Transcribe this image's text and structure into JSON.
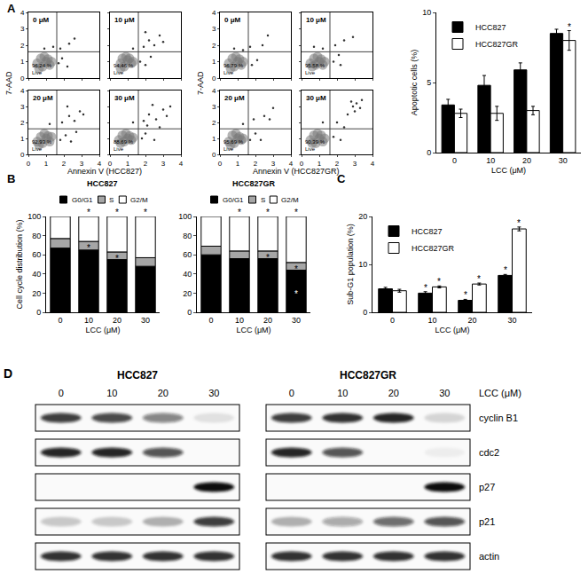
{
  "panel_letters": [
    "A",
    "B",
    "C",
    "D"
  ],
  "chart_data": [
    {
      "type": "scatter",
      "x_label": "Annexin V (HCC827)",
      "y_label": "7-AAD",
      "xlim": [
        0,
        4
      ],
      "ylim": [
        0,
        4
      ],
      "xticks": [
        0,
        1,
        2,
        3,
        4
      ],
      "yticks": [
        0,
        1,
        2,
        3,
        4
      ],
      "quadrant": [
        1.6,
        1.6
      ],
      "plots": [
        {
          "title": "0 μM",
          "live_label": "96.24 %",
          "live_text": "Live",
          "cloud": [
            [
              0.5,
              0.9
            ],
            [
              0.8,
              0.7
            ],
            [
              1.0,
              1.0
            ],
            [
              0.7,
              1.2
            ],
            [
              1.2,
              0.8
            ],
            [
              0.9,
              1.3
            ],
            [
              0.6,
              0.6
            ],
            [
              1.1,
              1.15
            ],
            [
              1.3,
              1.0
            ]
          ],
          "points": [
            [
              1.7,
              0.9
            ],
            [
              1.9,
              1.2
            ],
            [
              2.2,
              0.7
            ],
            [
              1.8,
              1.8
            ],
            [
              2.3,
              2.1
            ],
            [
              1.4,
              1.9
            ],
            [
              2.6,
              2.4
            ],
            [
              0.9,
              1.8
            ]
          ]
        },
        {
          "title": "10 μM",
          "live_label": "94.46 %",
          "live_text": "Live",
          "cloud": [
            [
              0.6,
              0.9
            ],
            [
              0.8,
              0.7
            ],
            [
              1.0,
              1.1
            ],
            [
              0.7,
              1.2
            ],
            [
              1.2,
              0.9
            ],
            [
              0.9,
              1.3
            ],
            [
              0.6,
              0.6
            ],
            [
              1.1,
              1.2
            ],
            [
              1.3,
              1.0
            ]
          ],
          "points": [
            [
              1.7,
              1.0
            ],
            [
              2.0,
              0.8
            ],
            [
              2.3,
              1.3
            ],
            [
              1.9,
              1.9
            ],
            [
              2.2,
              2.3
            ],
            [
              2.5,
              2.0
            ],
            [
              2.8,
              2.6
            ],
            [
              1.3,
              1.8
            ],
            [
              2.0,
              2.8
            ],
            [
              3.0,
              2.2
            ]
          ]
        },
        {
          "title": "20 μM",
          "live_label": "92.93 %",
          "live_text": "Live",
          "cloud": [
            [
              0.5,
              0.8
            ],
            [
              0.8,
              0.7
            ],
            [
              1.0,
              1.0
            ],
            [
              0.7,
              1.1
            ],
            [
              1.2,
              0.8
            ],
            [
              0.9,
              1.3
            ],
            [
              0.6,
              0.6
            ],
            [
              1.1,
              1.15
            ],
            [
              1.3,
              1.1
            ]
          ],
          "points": [
            [
              1.8,
              0.9
            ],
            [
              2.1,
              1.2
            ],
            [
              2.4,
              0.8
            ],
            [
              1.9,
              2.0
            ],
            [
              2.3,
              2.4
            ],
            [
              2.6,
              2.1
            ],
            [
              2.9,
              2.7
            ],
            [
              1.2,
              1.9
            ],
            [
              2.2,
              3.0
            ],
            [
              3.1,
              2.5
            ],
            [
              2.7,
              1.4
            ]
          ]
        },
        {
          "title": "30 μM",
          "live_label": "88.69 %",
          "live_text": "Live",
          "cloud": [
            [
              0.5,
              0.9
            ],
            [
              0.8,
              0.8
            ],
            [
              1.0,
              1.0
            ],
            [
              0.7,
              1.2
            ],
            [
              1.2,
              0.9
            ],
            [
              0.9,
              1.3
            ],
            [
              0.6,
              0.7
            ],
            [
              1.1,
              1.15
            ],
            [
              1.3,
              1.05
            ]
          ],
          "points": [
            [
              1.8,
              1.0
            ],
            [
              2.0,
              1.3
            ],
            [
              2.5,
              0.9
            ],
            [
              1.9,
              2.1
            ],
            [
              2.2,
              2.5
            ],
            [
              2.6,
              2.2
            ],
            [
              3.0,
              2.8
            ],
            [
              2.4,
              3.1
            ],
            [
              3.2,
              2.4
            ],
            [
              2.8,
              1.7
            ],
            [
              1.3,
              2.0
            ],
            [
              2.1,
              1.8
            ],
            [
              3.4,
              3.0
            ]
          ]
        }
      ]
    },
    {
      "type": "scatter",
      "x_label": "Annexin V (HCC827GR)",
      "y_label": "7-AAD",
      "xlim": [
        0,
        4
      ],
      "ylim": [
        0,
        4
      ],
      "xticks": [
        0,
        1,
        2,
        3,
        4
      ],
      "yticks": [
        0,
        1,
        2,
        3,
        4
      ],
      "quadrant": [
        1.6,
        1.6
      ],
      "plots": [
        {
          "title": "0 μM",
          "live_label": "96.79 %",
          "live_text": "Live",
          "cloud": [
            [
              0.5,
              0.9
            ],
            [
              0.8,
              0.7
            ],
            [
              1.0,
              1.0
            ],
            [
              0.7,
              1.2
            ],
            [
              1.2,
              0.8
            ],
            [
              0.9,
              1.3
            ],
            [
              0.6,
              0.6
            ],
            [
              1.1,
              1.15
            ],
            [
              1.3,
              1.0
            ]
          ],
          "points": [
            [
              1.8,
              0.8
            ],
            [
              2.1,
              1.1
            ],
            [
              1.7,
              1.9
            ],
            [
              2.4,
              2.0
            ],
            [
              1.3,
              1.7
            ],
            [
              2.7,
              2.6
            ],
            [
              0.8,
              1.8
            ]
          ]
        },
        {
          "title": "10 μM",
          "live_label": "95.58 %",
          "live_text": "Live",
          "cloud": [
            [
              0.5,
              0.9
            ],
            [
              0.8,
              0.8
            ],
            [
              1.0,
              1.0
            ],
            [
              0.7,
              1.2
            ],
            [
              1.2,
              0.8
            ],
            [
              0.9,
              1.3
            ],
            [
              0.6,
              0.7
            ],
            [
              1.1,
              1.15
            ],
            [
              1.3,
              1.0
            ]
          ],
          "points": [
            [
              1.8,
              1.0
            ],
            [
              2.2,
              0.8
            ],
            [
              1.9,
              2.0
            ],
            [
              2.4,
              2.3
            ],
            [
              1.2,
              1.8
            ],
            [
              2.9,
              2.5
            ],
            [
              2.1,
              1.4
            ],
            [
              0.7,
              1.9
            ]
          ]
        },
        {
          "title": "20 μM",
          "live_label": "95.69 %",
          "live_text": "Live",
          "cloud": [
            [
              0.5,
              0.8
            ],
            [
              0.8,
              0.7
            ],
            [
              1.0,
              1.0
            ],
            [
              0.7,
              1.2
            ],
            [
              1.2,
              0.9
            ],
            [
              0.9,
              1.3
            ],
            [
              0.6,
              0.6
            ],
            [
              1.1,
              1.1
            ],
            [
              1.3,
              1.0
            ]
          ],
          "points": [
            [
              1.7,
              0.9
            ],
            [
              2.0,
              1.3
            ],
            [
              2.3,
              0.9
            ],
            [
              1.9,
              2.2
            ],
            [
              2.5,
              2.4
            ],
            [
              1.3,
              1.9
            ],
            [
              2.8,
              2.2
            ],
            [
              3.0,
              2.9
            ]
          ]
        },
        {
          "title": "30 μM",
          "live_label": "90.39 %",
          "live_text": "Live",
          "cloud": [
            [
              0.5,
              0.9
            ],
            [
              0.8,
              0.7
            ],
            [
              1.0,
              1.0
            ],
            [
              0.7,
              1.2
            ],
            [
              1.2,
              0.8
            ],
            [
              0.9,
              1.3
            ],
            [
              0.6,
              0.7
            ],
            [
              1.1,
              1.2
            ],
            [
              1.3,
              1.0
            ]
          ],
          "points": [
            [
              1.8,
              1.1
            ],
            [
              2.2,
              0.9
            ],
            [
              2.0,
              2.0
            ],
            [
              2.6,
              2.5
            ],
            [
              2.9,
              3.0
            ],
            [
              3.1,
              3.2
            ],
            [
              3.3,
              2.9
            ],
            [
              2.8,
              3.3
            ],
            [
              3.0,
              2.7
            ],
            [
              2.4,
              1.7
            ],
            [
              1.2,
              2.0
            ],
            [
              3.4,
              3.4
            ]
          ]
        }
      ]
    },
    {
      "type": "bar",
      "x_label": "LCC (μM)",
      "y_label": "Apoptotic cells (%)",
      "categories": [
        "0",
        "10",
        "20",
        "30"
      ],
      "ylim": [
        0,
        10
      ],
      "yticks": [
        0,
        5,
        10
      ],
      "legend": "top-left",
      "series": [
        {
          "name": "HCC827",
          "color": "#000000",
          "values": [
            3.4,
            4.8,
            5.9,
            8.5
          ],
          "errors": [
            0.4,
            0.7,
            0.5,
            0.3
          ]
        },
        {
          "name": "HCC827GR",
          "color": "#ffffff",
          "values": [
            2.8,
            2.8,
            3.0,
            8.0
          ],
          "errors": [
            0.3,
            0.5,
            0.3,
            0.7
          ]
        }
      ],
      "annotations": [
        {
          "category": "30",
          "series": "HCC827GR",
          "text": "*"
        }
      ]
    },
    {
      "type": "bar",
      "stacked": true,
      "title": "HCC827",
      "x_label": "LCC (μM)",
      "y_label": "Cell cycle distribution (%)",
      "categories": [
        "0",
        "10",
        "20",
        "30"
      ],
      "ylim": [
        0,
        100
      ],
      "yticks": [
        0,
        20,
        40,
        60,
        80,
        100
      ],
      "legend": "top",
      "series": [
        {
          "name": "G0/G1",
          "color": "#000000",
          "values": [
            67,
            65,
            55,
            48
          ]
        },
        {
          "name": "S",
          "color": "#a6a6a6",
          "values": [
            10,
            9,
            8,
            9
          ]
        },
        {
          "name": "G2/M",
          "color": "#ffffff",
          "values": [
            23,
            26,
            37,
            43
          ]
        }
      ],
      "annotations": [
        {
          "category": "10",
          "text": "*"
        },
        {
          "category": "20",
          "text": "*"
        },
        {
          "category": "30",
          "text": "*"
        },
        {
          "category": "10",
          "series": "S",
          "text": "*"
        },
        {
          "category": "20",
          "series": "S",
          "text": "*"
        }
      ]
    },
    {
      "type": "bar",
      "stacked": true,
      "title": "HCC827GR",
      "x_label": "LCC (μM)",
      "categories": [
        "0",
        "10",
        "20",
        "30"
      ],
      "ylim": [
        0,
        100
      ],
      "yticks": [
        0,
        20,
        40,
        60,
        80,
        100
      ],
      "legend": "top",
      "series": [
        {
          "name": "G0/G1",
          "color": "#000000",
          "values": [
            60,
            56,
            56,
            44
          ]
        },
        {
          "name": "S",
          "color": "#a6a6a6",
          "values": [
            9,
            8,
            8,
            8
          ]
        },
        {
          "name": "G2/M",
          "color": "#ffffff",
          "values": [
            31,
            36,
            36,
            48
          ]
        }
      ],
      "annotations": [
        {
          "category": "10",
          "text": "*"
        },
        {
          "category": "20",
          "text": "*"
        },
        {
          "category": "30",
          "text": "*"
        },
        {
          "category": "20",
          "series": "S",
          "text": "*"
        },
        {
          "category": "30",
          "series": "S",
          "text": "*"
        },
        {
          "category": "30",
          "series": "G0/G1",
          "text": "*"
        }
      ]
    },
    {
      "type": "bar",
      "x_label": "LCC (μM)",
      "y_label": "Sub-G1 population (%)",
      "categories": [
        "0",
        "10",
        "20",
        "30"
      ],
      "ylim": [
        0,
        20
      ],
      "yticks": [
        0,
        10,
        20
      ],
      "legend": "top-left",
      "series": [
        {
          "name": "HCC827",
          "color": "#000000",
          "values": [
            4.9,
            4.0,
            2.5,
            7.7
          ],
          "errors": [
            0.3,
            0.3,
            0.2,
            0.2
          ]
        },
        {
          "name": "HCC827GR",
          "color": "#ffffff",
          "values": [
            4.5,
            5.3,
            5.9,
            17.4
          ],
          "errors": [
            0.3,
            0.2,
            0.2,
            0.4
          ]
        }
      ],
      "annotations": [
        {
          "category": "10",
          "series": "HCC827",
          "text": "*"
        },
        {
          "category": "20",
          "series": "HCC827",
          "text": "*"
        },
        {
          "category": "30",
          "series": "HCC827",
          "text": "*"
        },
        {
          "category": "10",
          "series": "HCC827GR",
          "text": "*"
        },
        {
          "category": "20",
          "series": "HCC827GR",
          "text": "*"
        },
        {
          "category": "30",
          "series": "HCC827GR",
          "text": "*"
        }
      ]
    }
  ],
  "blot": {
    "groups": [
      "HCC827",
      "HCC827GR"
    ],
    "lanes": [
      "0",
      "10",
      "20",
      "30"
    ],
    "lane_title": "LCC (μM)",
    "rows": [
      {
        "label": "cyclin B1",
        "bands": [
          [
            0.8,
            0.75,
            0.5,
            0.1
          ],
          [
            0.8,
            0.85,
            0.9,
            0.15
          ]
        ]
      },
      {
        "label": "cdc2",
        "bands": [
          [
            0.9,
            0.9,
            0.7,
            0
          ],
          [
            0.9,
            0.7,
            0,
            0.05
          ]
        ]
      },
      {
        "label": "p27",
        "bands": [
          [
            0,
            0,
            0,
            1
          ],
          [
            0,
            0,
            0,
            1
          ]
        ]
      },
      {
        "label": "p21",
        "bands": [
          [
            0.2,
            0.2,
            0.3,
            0.8
          ],
          [
            0.3,
            0.35,
            0.6,
            0.7
          ]
        ]
      },
      {
        "label": "actin",
        "bands": [
          [
            0.85,
            0.85,
            0.85,
            0.85
          ],
          [
            0.85,
            0.85,
            0.85,
            0.85
          ]
        ]
      }
    ]
  }
}
